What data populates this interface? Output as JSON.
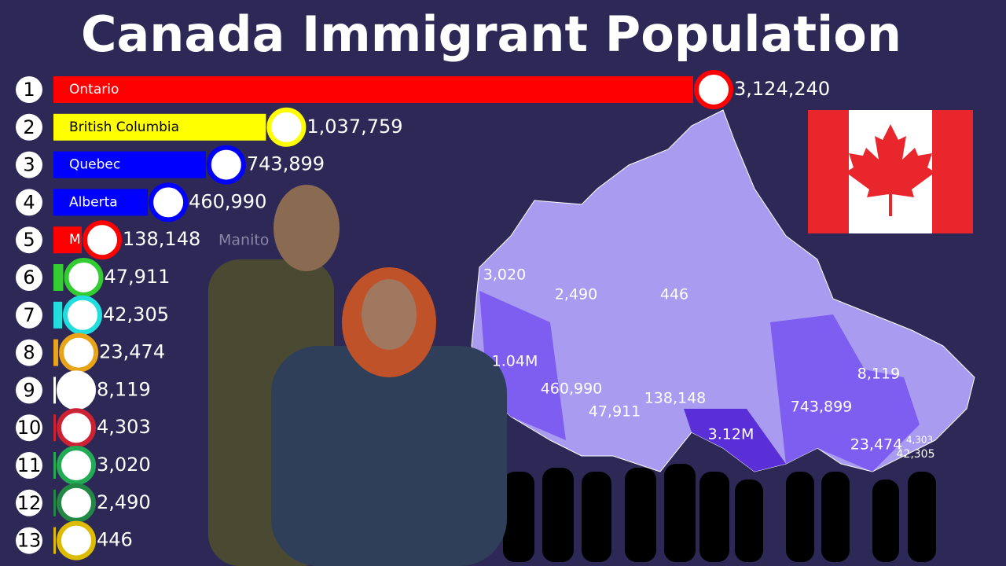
{
  "chart_data": {
    "type": "bar",
    "title": "Canada Immigrant Population",
    "ranks": [
      1,
      2,
      3,
      4,
      5,
      6,
      7,
      8,
      9,
      10,
      11,
      12,
      13
    ],
    "categories": [
      "Ontario",
      "British Columbia",
      "Quebec",
      "Alberta",
      "M",
      null,
      null,
      null,
      null,
      null,
      null,
      null,
      null
    ],
    "values": [
      3124240,
      1037759,
      743899,
      460990,
      138148,
      47911,
      42305,
      23474,
      8119,
      4303,
      3020,
      2490,
      446
    ],
    "value_labels": [
      "3,124,240",
      "1,037,759",
      "743,899",
      "460,990",
      "138,148",
      "47,911",
      "42,305",
      "23,474",
      "8,119",
      "4,303",
      "3,020",
      "2,490",
      "446"
    ],
    "colors": [
      "#ff0000",
      "#ffff00",
      "#0000ff",
      "#0000ff",
      "#ff0000",
      "#33cc33",
      "#22dddd",
      "#e8a317",
      "#ffffff",
      "#cc2233",
      "#22aa55",
      "#228844",
      "#ddbb00"
    ],
    "xlim": [
      0,
      3124240
    ],
    "annotation": "Manito",
    "map_labels": [
      "3,020",
      "2,490",
      "446",
      "1.04M",
      "460,990",
      "47,911",
      "138,148",
      "3.12M",
      "743,899",
      "8,119",
      "23,474",
      "4,303",
      "42,305"
    ]
  }
}
